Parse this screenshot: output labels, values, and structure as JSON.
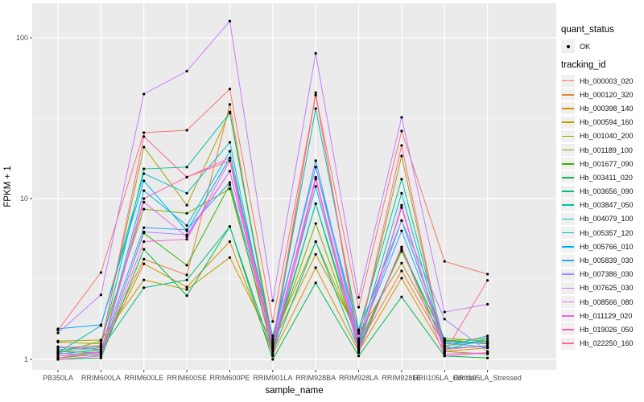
{
  "figure": {
    "background": "#FFFFFF",
    "panel_bg": "#EBEBEB",
    "grid_color": "#FFFFFF",
    "tick_color": "#333333",
    "axis_text_color": "#4D4D4D",
    "point_color": "#000000"
  },
  "legend": {
    "quant_title": "quant_status",
    "quant_items": [
      {
        "label": "OK",
        "shape": "point",
        "color": "#000000"
      }
    ],
    "tracking_title": "tracking_id"
  },
  "chart_data": {
    "type": "line",
    "title": "",
    "x_label": "sample_name",
    "y_label": "FPKM + 1",
    "y_scale": "log10",
    "y_ticks": [
      1,
      10,
      100
    ],
    "y_minor_ticks": [
      3.162,
      31.62
    ],
    "ylim": [
      0.87,
      160
    ],
    "grid": true,
    "legend_position": "right",
    "marker": "black-point",
    "categories": [
      "PB350LA",
      "RRIM600LA",
      "RRIM600LE",
      "RRIM600SE",
      "RRIM600PE",
      "RRIM901LA",
      "RRIM928BA",
      "RRIM928LA",
      "RRIM928LE",
      "RRII105LA_Control",
      "RRII105LA_Stressed"
    ],
    "series": [
      {
        "name": "Hb_000003_020",
        "color": "#F8766D",
        "values": [
          1.52,
          3.47,
          25.7,
          26.6,
          48.0,
          1.72,
          44.0,
          2.11,
          26.3,
          4.07,
          3.39
        ]
      },
      {
        "name": "Hb_000120_320",
        "color": "#EA8331",
        "values": [
          1.12,
          1.18,
          4.2,
          3.35,
          38.5,
          1.15,
          45.6,
          1.22,
          3.55,
          1.22,
          1.28
        ]
      },
      {
        "name": "Hb_000398_140",
        "color": "#D89000",
        "values": [
          1.05,
          1.12,
          3.93,
          2.82,
          5.4,
          1.08,
          3.72,
          1.12,
          3.2,
          1.12,
          1.18
        ]
      },
      {
        "name": "Hb_000594_160",
        "color": "#C09B00",
        "values": [
          1.3,
          1.32,
          3.12,
          2.72,
          4.3,
          1.26,
          4.5,
          1.45,
          3.97,
          1.3,
          1.35
        ]
      },
      {
        "name": "Hb_001040_200",
        "color": "#A3A500",
        "values": [
          1.28,
          1.25,
          20.9,
          9.1,
          34.6,
          1.33,
          5.4,
          1.35,
          18.4,
          1.12,
          1.08
        ]
      },
      {
        "name": "Hb_001189_100",
        "color": "#7CAE00",
        "values": [
          1.1,
          1.3,
          8.6,
          8.1,
          11.5,
          1.2,
          7.0,
          1.25,
          4.7,
          1.35,
          1.3
        ]
      },
      {
        "name": "Hb_001677_090",
        "color": "#39B600",
        "values": [
          1.02,
          1.08,
          6.1,
          3.85,
          12.2,
          1.12,
          9.3,
          1.18,
          4.84,
          1.32,
          1.25
        ]
      },
      {
        "name": "Hb_003411_020",
        "color": "#00BB4E",
        "values": [
          1.0,
          1.02,
          4.84,
          2.49,
          6.7,
          1.0,
          2.99,
          1.05,
          2.45,
          1.05,
          1.02
        ]
      },
      {
        "name": "Hb_003656_090",
        "color": "#00BF7D",
        "values": [
          1.08,
          1.15,
          2.79,
          3.12,
          6.7,
          1.1,
          5.4,
          1.15,
          5.0,
          1.18,
          1.2
        ]
      },
      {
        "name": "Hb_003847_050",
        "color": "#00C1A3",
        "values": [
          1.15,
          1.2,
          15.3,
          15.7,
          34.0,
          1.25,
          36.3,
          1.53,
          13.2,
          1.25,
          1.3
        ]
      },
      {
        "name": "Hb_004079_100",
        "color": "#00BFC4",
        "values": [
          1.1,
          1.62,
          14.3,
          10.8,
          22.4,
          1.18,
          9.3,
          1.3,
          10.8,
          1.2,
          1.4
        ]
      },
      {
        "name": "Hb_005357_120",
        "color": "#00BAE0",
        "values": [
          1.12,
          1.1,
          11.2,
          6.8,
          19.7,
          1.15,
          11.9,
          1.2,
          8.8,
          1.15,
          1.35
        ]
      },
      {
        "name": "Hb_005766_010",
        "color": "#00B0F6",
        "values": [
          1.55,
          1.64,
          12.9,
          6.3,
          17.9,
          1.4,
          15.7,
          1.5,
          7.3,
          1.3,
          1.25
        ]
      },
      {
        "name": "Hb_005839_030",
        "color": "#35A2FF",
        "values": [
          1.2,
          1.15,
          6.6,
          6.4,
          12.6,
          1.28,
          17.2,
          1.33,
          6.3,
          1.28,
          1.18
        ]
      },
      {
        "name": "Hb_007386_030",
        "color": "#9590FF",
        "values": [
          1.1,
          1.05,
          6.2,
          5.96,
          14.8,
          1.35,
          15.7,
          1.28,
          7.3,
          1.78,
          1.12
        ]
      },
      {
        "name": "Hb_007625_030",
        "color": "#C77CFF",
        "values": [
          1.46,
          2.52,
          44.7,
          62.0,
          127.0,
          2.32,
          80.0,
          2.43,
          32.0,
          1.97,
          2.2
        ]
      },
      {
        "name": "Hb_008566_080",
        "color": "#E76BF3",
        "values": [
          1.05,
          1.1,
          9.5,
          5.8,
          14.8,
          1.22,
          13.6,
          1.15,
          9.1,
          1.08,
          1.1
        ]
      },
      {
        "name": "Hb_011129_020",
        "color": "#FA62DB",
        "values": [
          1.0,
          1.05,
          5.4,
          5.58,
          17.2,
          1.05,
          13.2,
          1.1,
          5.0,
          1.05,
          1.1
        ]
      },
      {
        "name": "Hb_019026_050",
        "color": "#FF62BC",
        "values": [
          1.02,
          1.12,
          10.0,
          13.6,
          17.9,
          1.18,
          13.3,
          1.25,
          8.8,
          1.15,
          1.22
        ]
      },
      {
        "name": "Hb_022250_160",
        "color": "#FF6A98",
        "values": [
          1.18,
          1.22,
          24.3,
          13.6,
          17.2,
          1.3,
          44.0,
          1.35,
          21.4,
          1.1,
          3.1
        ]
      }
    ]
  }
}
